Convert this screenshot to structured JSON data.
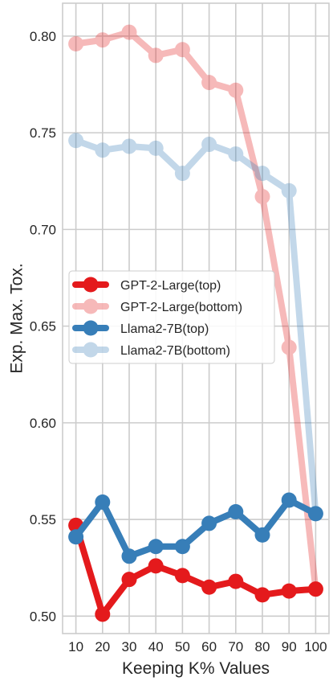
{
  "chart_data": {
    "type": "line",
    "xlabel": "Keeping K% Values",
    "ylabel": "Exp. Max. Tox.",
    "x": [
      10,
      20,
      30,
      40,
      50,
      60,
      70,
      80,
      90,
      100
    ],
    "xlim": [
      5,
      105
    ],
    "ylim": [
      0.491,
      0.817
    ],
    "yticks": [
      0.5,
      0.55,
      0.6,
      0.65,
      0.7,
      0.75,
      0.8
    ],
    "ytick_labels": [
      "0.50",
      "0.55",
      "0.60",
      "0.65",
      "0.70",
      "0.75",
      "0.80"
    ],
    "xtick_labels": [
      "10",
      "20",
      "30",
      "40",
      "50",
      "60",
      "70",
      "80",
      "90",
      "100"
    ],
    "grid": true,
    "legend_position": "center-left",
    "series": [
      {
        "name": "GPT-2-Large(top)",
        "color": "#e41a1c",
        "opacity": 1.0,
        "values": [
          0.547,
          0.501,
          0.519,
          0.526,
          0.521,
          0.515,
          0.518,
          0.511,
          0.513,
          0.514
        ]
      },
      {
        "name": "GPT-2-Large(bottom)",
        "color": "#e41a1c",
        "opacity": 0.3,
        "values": [
          0.796,
          0.798,
          0.802,
          0.79,
          0.793,
          0.776,
          0.772,
          0.717,
          0.639,
          0.514
        ]
      },
      {
        "name": "Llama2-7B(top)",
        "color": "#377eb8",
        "opacity": 1.0,
        "values": [
          0.541,
          0.559,
          0.531,
          0.536,
          0.536,
          0.548,
          0.554,
          0.542,
          0.56,
          0.553
        ]
      },
      {
        "name": "Llama2-7B(bottom)",
        "color": "#377eb8",
        "opacity": 0.3,
        "values": [
          0.746,
          0.741,
          0.743,
          0.742,
          0.729,
          0.744,
          0.739,
          0.729,
          0.72,
          0.553
        ]
      }
    ]
  }
}
